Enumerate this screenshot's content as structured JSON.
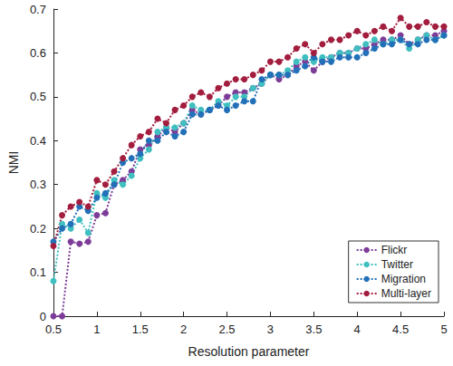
{
  "chart_data": {
    "type": "line",
    "x_label": "Resolution parameter",
    "y_label": "NMI",
    "x": [
      0.5,
      0.6,
      0.7,
      0.8,
      0.9,
      1.0,
      1.1,
      1.2,
      1.3,
      1.4,
      1.5,
      1.6,
      1.7,
      1.8,
      1.9,
      2.0,
      2.1,
      2.2,
      2.3,
      2.4,
      2.5,
      2.6,
      2.7,
      2.8,
      2.9,
      3.0,
      3.1,
      3.2,
      3.3,
      3.4,
      3.5,
      3.6,
      3.7,
      3.8,
      3.9,
      4.0,
      4.1,
      4.2,
      4.3,
      4.4,
      4.5,
      4.6,
      4.7,
      4.8,
      4.9,
      5.0
    ],
    "series": [
      {
        "name": "Flickr",
        "color": "#7d3c98",
        "values": [
          0,
          0,
          0.17,
          0.165,
          0.17,
          0.23,
          0.235,
          0.3,
          0.31,
          0.33,
          0.38,
          0.39,
          0.41,
          0.43,
          0.42,
          0.44,
          0.47,
          0.46,
          0.47,
          0.48,
          0.5,
          0.51,
          0.51,
          0.52,
          0.53,
          0.55,
          0.54,
          0.55,
          0.57,
          0.58,
          0.56,
          0.58,
          0.59,
          0.6,
          0.6,
          0.61,
          0.61,
          0.62,
          0.63,
          0.63,
          0.64,
          0.62,
          0.63,
          0.64,
          0.64,
          0.65
        ]
      },
      {
        "name": "Twitter",
        "color": "#3fbfbf",
        "values": [
          0.08,
          0.21,
          0.2,
          0.22,
          0.19,
          0.28,
          0.27,
          0.31,
          0.3,
          0.32,
          0.36,
          0.38,
          0.42,
          0.43,
          0.43,
          0.44,
          0.48,
          0.47,
          0.47,
          0.49,
          0.48,
          0.5,
          0.5,
          0.52,
          0.53,
          0.55,
          0.55,
          0.56,
          0.58,
          0.59,
          0.58,
          0.59,
          0.59,
          0.6,
          0.6,
          0.61,
          0.62,
          0.63,
          0.62,
          0.63,
          0.63,
          0.61,
          0.63,
          0.64,
          0.63,
          0.64
        ]
      },
      {
        "name": "Migration",
        "color": "#2270b8",
        "values": [
          0.17,
          0.2,
          0.21,
          0.25,
          0.24,
          0.27,
          0.28,
          0.3,
          0.35,
          0.36,
          0.37,
          0.4,
          0.4,
          0.42,
          0.41,
          0.42,
          0.46,
          0.46,
          0.47,
          0.48,
          0.47,
          0.48,
          0.49,
          0.49,
          0.54,
          0.55,
          0.55,
          0.55,
          0.56,
          0.57,
          0.59,
          0.58,
          0.58,
          0.59,
          0.59,
          0.59,
          0.6,
          0.61,
          0.62,
          0.62,
          0.63,
          0.62,
          0.62,
          0.63,
          0.63,
          0.64
        ]
      },
      {
        "name": "Multi-layer",
        "color": "#a21d3e",
        "values": [
          0.16,
          0.23,
          0.25,
          0.26,
          0.25,
          0.31,
          0.3,
          0.33,
          0.36,
          0.39,
          0.41,
          0.42,
          0.45,
          0.44,
          0.47,
          0.48,
          0.5,
          0.51,
          0.5,
          0.52,
          0.53,
          0.54,
          0.54,
          0.55,
          0.56,
          0.58,
          0.58,
          0.59,
          0.61,
          0.62,
          0.6,
          0.62,
          0.63,
          0.63,
          0.64,
          0.65,
          0.64,
          0.65,
          0.66,
          0.65,
          0.68,
          0.66,
          0.66,
          0.67,
          0.66,
          0.66
        ]
      }
    ],
    "xlim": [
      0.5,
      5
    ],
    "xticks": [
      0.5,
      1,
      1.5,
      2,
      2.5,
      3,
      3.5,
      4,
      4.5,
      5
    ],
    "ylim": [
      0,
      0.7
    ],
    "yticks": [
      0,
      0.1,
      0.2,
      0.3,
      0.4,
      0.5,
      0.6,
      0.7
    ],
    "grid": false,
    "legend": "lower right",
    "marker": "circle",
    "line_style": "dotted"
  }
}
